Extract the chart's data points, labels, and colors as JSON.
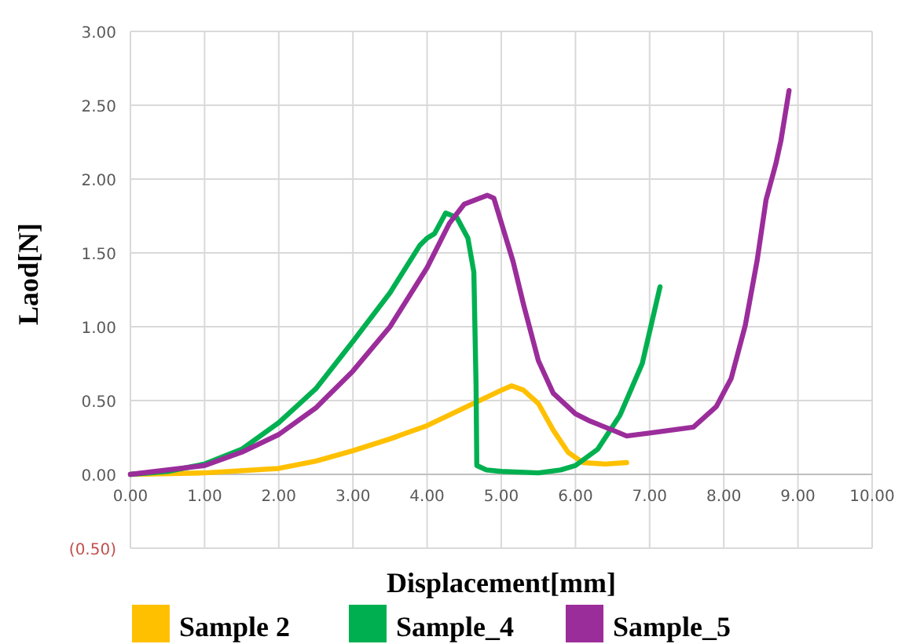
{
  "chart_data": {
    "type": "line",
    "xlabel": "Displacement[mm]",
    "ylabel": "Laod[N]",
    "xlim": [
      0,
      10
    ],
    "xticks": [
      {
        "value": 0,
        "label": "0.00"
      },
      {
        "value": 1,
        "label": "1.00"
      },
      {
        "value": 2,
        "label": "2.00"
      },
      {
        "value": 3,
        "label": "3.00"
      },
      {
        "value": 4,
        "label": "4.00"
      },
      {
        "value": 5,
        "label": "5.00"
      },
      {
        "value": 6,
        "label": "6.00"
      },
      {
        "value": 7,
        "label": "7.00"
      },
      {
        "value": 8,
        "label": "8.00"
      },
      {
        "value": 9,
        "label": "9.00"
      },
      {
        "value": 10,
        "label": "10.00"
      }
    ],
    "ylim": [
      -0.5,
      3
    ],
    "yticks": [
      {
        "value": -0.5,
        "label": "(0.50)"
      },
      {
        "value": 0,
        "label": "0.00"
      },
      {
        "value": 0.5,
        "label": "0.50"
      },
      {
        "value": 1,
        "label": "1.00"
      },
      {
        "value": 1.5,
        "label": "1.50"
      },
      {
        "value": 2,
        "label": "2.00"
      },
      {
        "value": 2.5,
        "label": "2.50"
      },
      {
        "value": 3,
        "label": "3.00"
      }
    ],
    "grid": true,
    "legend": "bottom",
    "marker": "none",
    "line_style": "solid",
    "series": [
      {
        "name": "Sample 2",
        "color": "#ffc000",
        "x": [
          0,
          1,
          2,
          2.5,
          3,
          3.5,
          4,
          4.5,
          5,
          5.14,
          5.3,
          5.5,
          5.7,
          5.9,
          6.1,
          6.4,
          6.69
        ],
        "values": [
          0,
          0.01,
          0.04,
          0.09,
          0.16,
          0.24,
          0.33,
          0.45,
          0.57,
          0.6,
          0.57,
          0.48,
          0.3,
          0.15,
          0.08,
          0.07,
          0.08
        ]
      },
      {
        "name": "Sample_4",
        "color": "#00b050",
        "x": [
          0,
          0.5,
          1,
          1.5,
          2,
          2.5,
          3,
          3.5,
          3.9,
          4,
          4.1,
          4.25,
          4.4,
          4.55,
          4.63,
          4.66,
          4.67,
          4.8,
          5,
          5.5,
          5.8,
          6,
          6.3,
          6.6,
          6.9,
          7.14
        ],
        "values": [
          0,
          0.02,
          0.07,
          0.17,
          0.35,
          0.58,
          0.9,
          1.23,
          1.55,
          1.6,
          1.63,
          1.77,
          1.74,
          1.6,
          1.37,
          0.6,
          0.06,
          0.03,
          0.02,
          0.01,
          0.03,
          0.06,
          0.17,
          0.4,
          0.75,
          1.27
        ]
      },
      {
        "name": "Sample_5",
        "color": "#9b2d9b",
        "x": [
          0,
          1,
          1.5,
          2,
          2.5,
          3,
          3.5,
          4,
          4.3,
          4.5,
          4.81,
          4.9,
          5.16,
          5.3,
          5.5,
          5.7,
          6,
          6.2,
          6.5,
          6.69,
          7,
          7.59,
          7.9,
          8.1,
          8.29,
          8.45,
          8.57,
          8.7,
          8.77,
          8.88
        ],
        "values": [
          0,
          0.06,
          0.15,
          0.27,
          0.45,
          0.7,
          1,
          1.4,
          1.7,
          1.83,
          1.89,
          1.87,
          1.44,
          1.15,
          0.77,
          0.55,
          0.41,
          0.36,
          0.3,
          0.26,
          0.28,
          0.32,
          0.46,
          0.65,
          1.01,
          1.45,
          1.86,
          2.1,
          2.26,
          2.6
        ]
      }
    ]
  }
}
